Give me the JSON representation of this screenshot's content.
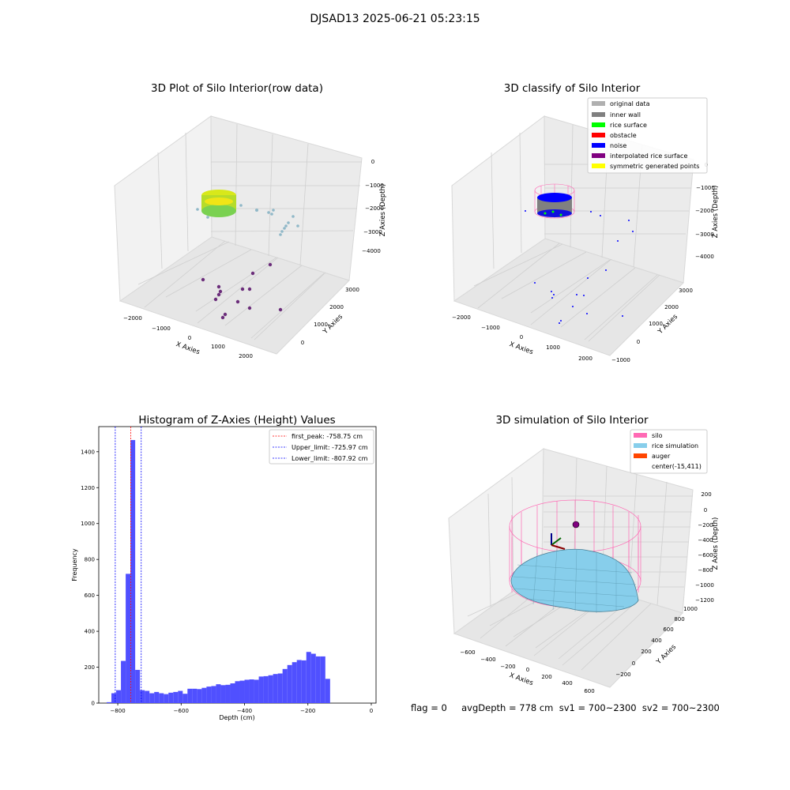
{
  "suptitle": "DJSAD13 2025-06-21 05:23:15",
  "status": {
    "text": "flag = 0     avgDepth = 778 cm  sv1 = 700~2300  sv2 = 700~2300"
  },
  "colors": {
    "hist_bar": "#5050ff",
    "first_peak_line": "#ff0000",
    "limit_line": "#0000ff",
    "silo": "#ff69b4",
    "rice_simulation": "#87ceeb",
    "auger": "#ff4500",
    "original_data": "#b0b0b0",
    "inner_wall": "#808080",
    "rice_surface": "#00ff00",
    "obstacle": "#ff0000",
    "noise": "#0000ff",
    "interpolated_rice_surface": "#800080",
    "symmetric_generated_points": "#ffff00"
  },
  "chart_data": [
    {
      "type": "scatter",
      "subtype": "3d",
      "title": "3D Plot of Silo Interior(row data)",
      "xlabel": "X Axies",
      "ylabel": "Y Axies",
      "zlabel": "Z Axies (Depth)",
      "xticks": [
        "−2000",
        "−1000",
        "0",
        "1000",
        "2000"
      ],
      "yticks": [
        "0",
        "1000",
        "2000",
        "3000"
      ],
      "zticks": [
        "0",
        "−1000",
        "−2000",
        "−3000",
        "−4000"
      ],
      "grid": true,
      "colormap": "viridis"
    },
    {
      "type": "scatter",
      "subtype": "3d",
      "title": "3D classify of Silo Interior",
      "xlabel": "X Axies",
      "ylabel": "Y Axies",
      "zlabel": "Z Axies (Depth)",
      "xticks": [
        "−2000",
        "−1000",
        "0",
        "1000",
        "2000"
      ],
      "yticks": [
        "−1000",
        "0",
        "1000",
        "2000",
        "3000"
      ],
      "zticks": [
        "0",
        "−1000",
        "−2000",
        "−3000",
        "−4000"
      ],
      "legend": [
        "original data",
        "inner wall",
        "rice surface",
        "obstacle",
        "noise",
        "interpolated rice surface",
        "symmetric generated points"
      ],
      "legend_placement": "top-right",
      "grid": true
    },
    {
      "type": "bar",
      "subtype": "histogram",
      "title": "Histogram of Z-Axies (Height) Values",
      "xlabel": "Depth (cm)",
      "ylabel": "Frequency",
      "xlim": [
        -860,
        15
      ],
      "ylim": [
        0,
        1540
      ],
      "xticks": [
        -800,
        -600,
        -400,
        -200,
        0
      ],
      "xtick_labels": [
        "−800",
        "−600",
        "−400",
        "−200",
        "0"
      ],
      "yticks": [
        0,
        200,
        400,
        600,
        800,
        1000,
        1200,
        1400
      ],
      "bin_start": -835,
      "bin_width": 15,
      "values": [
        5,
        55,
        72,
        235,
        720,
        1465,
        185,
        72,
        68,
        55,
        62,
        55,
        50,
        58,
        62,
        68,
        52,
        80,
        80,
        78,
        85,
        92,
        95,
        105,
        100,
        102,
        110,
        122,
        125,
        130,
        132,
        130,
        148,
        150,
        155,
        162,
        165,
        190,
        212,
        228,
        240,
        238,
        285,
        275,
        260,
        260,
        135
      ],
      "vlines": [
        {
          "label": "first_peak: -758.75 cm",
          "x": -758.75,
          "style": "red-dashed"
        },
        {
          "label": "Upper_limit: -725.97 cm",
          "x": -725.97,
          "style": "blue-dashed"
        },
        {
          "label": "Lower_limit: -807.92 cm",
          "x": -807.92,
          "style": "blue-dashed"
        }
      ],
      "legend_placement": "top-right",
      "grid": false
    },
    {
      "type": "surface",
      "subtype": "3d",
      "title": "3D simulation of Silo Interior",
      "xlabel": "X Axies",
      "ylabel": "Y Axies",
      "zlabel": "Z Axies (Depth)",
      "xticks": [
        "−600",
        "−400",
        "−200",
        "0",
        "200",
        "400",
        "600"
      ],
      "yticks": [
        "−200",
        "0",
        "200",
        "400",
        "600",
        "800",
        "1000"
      ],
      "zticks": [
        "200",
        "0",
        "−200",
        "−400",
        "−600",
        "−800",
        "−1000",
        "−1200"
      ],
      "legend": [
        "silo",
        "rice simulation",
        "auger",
        "center(-15,411)"
      ],
      "legend_placement": "top-right",
      "grid": true
    }
  ]
}
